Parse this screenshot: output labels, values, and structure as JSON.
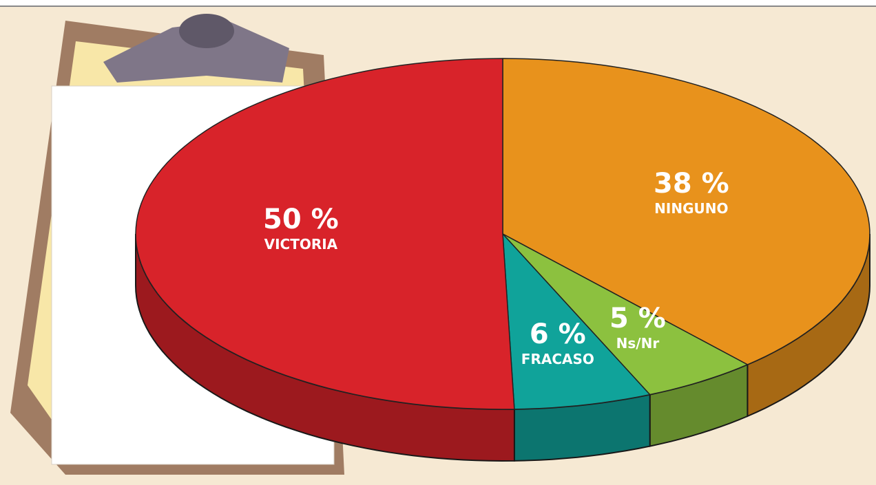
{
  "chart_data": {
    "type": "pie",
    "categories": [
      "NINGUNO",
      "Ns/Nr",
      "FRACASO",
      "VICTORIA"
    ],
    "values": [
      38,
      5,
      6,
      50
    ],
    "value_labels": [
      "38 %",
      "5 %",
      "6 %",
      "50 %"
    ],
    "colors": [
      "#e8921c",
      "#8cc13f",
      "#10a39a",
      "#d8232a"
    ]
  }
}
